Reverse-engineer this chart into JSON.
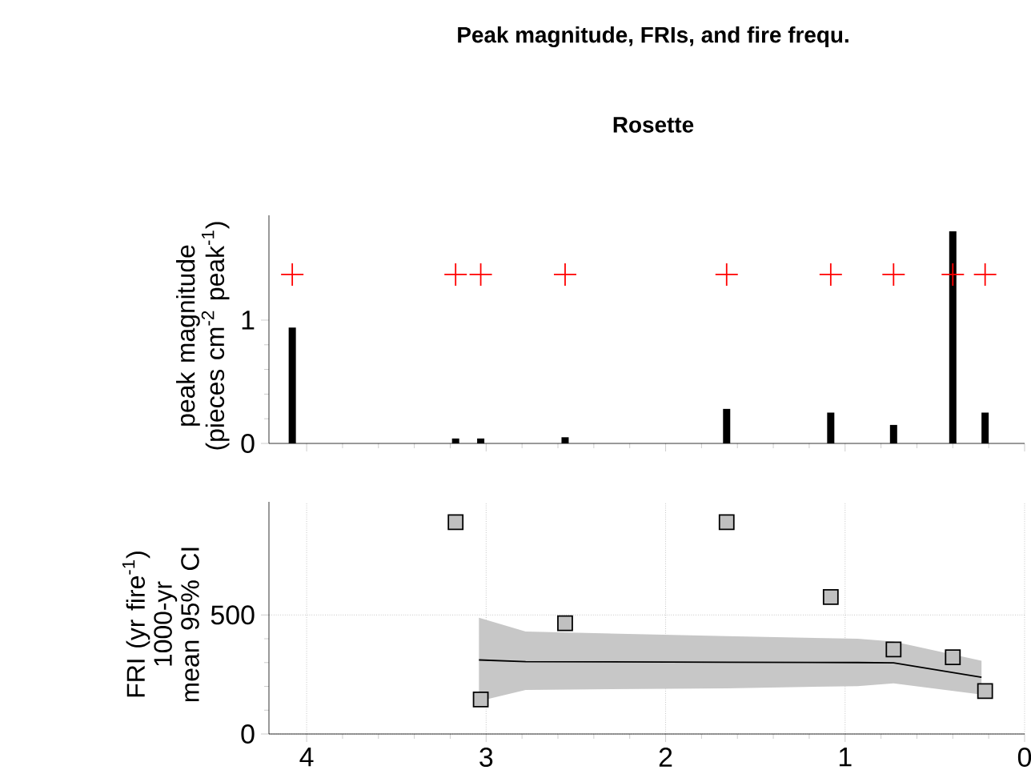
{
  "chart_data": [
    {
      "type": "bar",
      "title": "Peak magnitude, FRIs, and fire frequ.",
      "subtitle": "Rosette",
      "ylabel": "peak magnitude (pieces cm$^{-2}$ peak$^{-1}$)",
      "x": [
        4.08,
        3.17,
        3.03,
        2.56,
        1.66,
        1.08,
        0.73,
        0.4,
        0.22
      ],
      "xlim": [
        4.21,
        0
      ],
      "xticks": [
        {
          "value": 4,
          "label": null
        },
        {
          "value": 3,
          "label": null
        },
        {
          "value": 2,
          "label": null
        },
        {
          "value": 1,
          "label": null
        },
        {
          "value": 0,
          "label": null
        }
      ],
      "ylim": [
        0,
        1.85
      ],
      "yticks": [
        0,
        1
      ],
      "tick_labels": "y",
      "series": [
        {
          "color": "#000000",
          "values": [
            0.94,
            0.04,
            0.04,
            0.05,
            0.28,
            0.25,
            0.15,
            1.72,
            0.25
          ]
        },
        {
          "type": "scatter",
          "color": "#ff0000",
          "marker": "cross",
          "values": [
            1.37,
            1.37,
            1.37,
            1.37,
            1.37,
            1.37,
            1.37,
            1.37,
            1.37
          ]
        }
      ]
    },
    {
      "type": "scatter",
      "ylabel": "FRI (yr fire$^{-1}$) 1000-yr mean 95% CI",
      "xlim": [
        4.21,
        0
      ],
      "xticks": [
        4,
        3,
        2,
        1,
        0
      ],
      "ylim": [
        0,
        975
      ],
      "yticks": [
        0,
        500
      ],
      "grid": true,
      "series": [
        {
          "color": "#c0c0c0",
          "marker": "square",
          "x": [
            3.17,
            3.03,
            2.56,
            1.66,
            1.08,
            0.73,
            0.4,
            0.22
          ],
          "values": [
            890,
            145,
            465,
            890,
            575,
            355,
            322,
            180
          ]
        },
        {
          "type": "line",
          "color": "#000000",
          "x": [
            3.04,
            2.78,
            1.66,
            0.93,
            0.73,
            0.24
          ],
          "values": [
            311,
            304,
            301,
            300,
            299,
            238
          ],
          "lower": [
            138,
            185,
            192,
            201,
            213,
            166
          ],
          "upper": [
            488,
            430,
            411,
            400,
            388,
            308
          ]
        }
      ]
    }
  ]
}
